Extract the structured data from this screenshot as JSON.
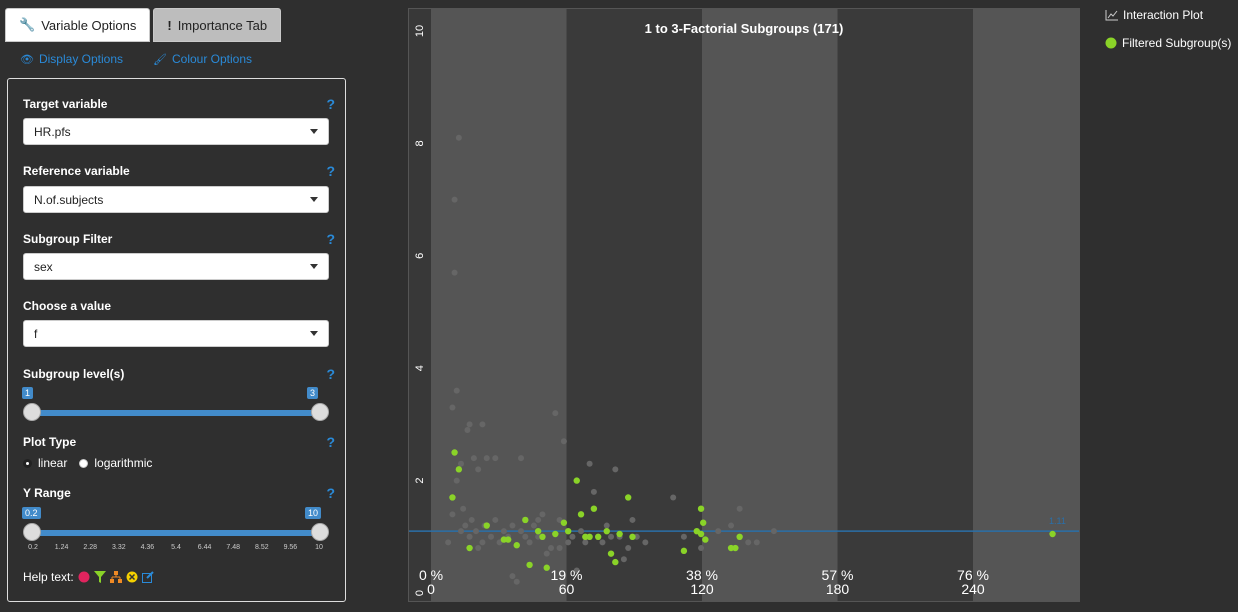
{
  "tabs": [
    {
      "label": "Variable Options",
      "icon": "wrench-icon",
      "active": true
    },
    {
      "label": "Importance Tab",
      "icon": "exclamation-icon",
      "active": false
    }
  ],
  "subtabs": [
    {
      "label": "Display Options",
      "icon": "eye-icon"
    },
    {
      "label": "Colour Options",
      "icon": "brush-icon"
    }
  ],
  "fields": {
    "target": {
      "label": "Target variable",
      "value": "HR.pfs"
    },
    "reference": {
      "label": "Reference variable",
      "value": "N.of.subjects"
    },
    "filter": {
      "label": "Subgroup Filter",
      "value": "sex"
    },
    "value": {
      "label": "Choose a value",
      "value": "f"
    },
    "levels": {
      "label": "Subgroup level(s)",
      "min": "1",
      "max": "3"
    },
    "plottype": {
      "label": "Plot Type",
      "options": [
        "linear",
        "logarithmic"
      ],
      "selected": "linear"
    },
    "yrange": {
      "label": "Y Range",
      "min": "0.2",
      "max": "10",
      "ticks": [
        "0.2",
        "1.24",
        "2.28",
        "3.32",
        "4.36",
        "5.4",
        "6.44",
        "7.48",
        "8.52",
        "9.56",
        "10"
      ]
    }
  },
  "help_text_label": "Help text:",
  "legend": {
    "interaction": "Interaction Plot",
    "filtered": "Filtered Subgroup(s)"
  },
  "colors": {
    "accent": "#428bca",
    "link": "#2a8ad8",
    "green": "#8ad328",
    "grey_point": "#666666",
    "refline": "#2a6fa8"
  },
  "chart_data": {
    "type": "scatter",
    "title": "1 to 3-Factorial Subgroups (171)",
    "ylim": [
      0,
      10
    ],
    "yticks": [
      "0",
      "2",
      "4",
      "6",
      "8",
      "10"
    ],
    "xlim": [
      0,
      300
    ],
    "x_labels_pct": [
      "0 %",
      "19 %",
      "38 %",
      "57 %",
      "76 %"
    ],
    "x_labels_n": [
      "0",
      "60",
      "120",
      "180",
      "240"
    ],
    "reference_line": {
      "y": 1.1,
      "label": "1.11"
    },
    "grey_points": [
      [
        12,
        3.6
      ],
      [
        10,
        3.3
      ],
      [
        13,
        8.1
      ],
      [
        11,
        7.0
      ],
      [
        11,
        5.7
      ],
      [
        14,
        2.3
      ],
      [
        12,
        2.0
      ],
      [
        15,
        1.5
      ],
      [
        10,
        1.4
      ],
      [
        18,
        3.0
      ],
      [
        17,
        2.9
      ],
      [
        20,
        2.4
      ],
      [
        22,
        2.2
      ],
      [
        24,
        3.0
      ],
      [
        26,
        2.4
      ],
      [
        30,
        2.4
      ],
      [
        8,
        0.9
      ],
      [
        14,
        1.1
      ],
      [
        16,
        1.2
      ],
      [
        18,
        1.0
      ],
      [
        19,
        1.3
      ],
      [
        21,
        1.1
      ],
      [
        22,
        0.8
      ],
      [
        24,
        0.9
      ],
      [
        25,
        1.2
      ],
      [
        28,
        1.0
      ],
      [
        30,
        1.3
      ],
      [
        32,
        0.9
      ],
      [
        34,
        1.1
      ],
      [
        36,
        1.0
      ],
      [
        38,
        0.3
      ],
      [
        40,
        0.2
      ],
      [
        38,
        1.2
      ],
      [
        42,
        1.1
      ],
      [
        44,
        1.0
      ],
      [
        46,
        0.9
      ],
      [
        48,
        1.2
      ],
      [
        50,
        1.3
      ],
      [
        52,
        1.4
      ],
      [
        54,
        0.7
      ],
      [
        56,
        0.8
      ],
      [
        58,
        3.2
      ],
      [
        60,
        1.3
      ],
      [
        62,
        2.7
      ],
      [
        64,
        0.9
      ],
      [
        66,
        1.0
      ],
      [
        68,
        0.4
      ],
      [
        70,
        1.1
      ],
      [
        72,
        0.9
      ],
      [
        74,
        2.3
      ],
      [
        76,
        1.8
      ],
      [
        78,
        1.0
      ],
      [
        80,
        0.9
      ],
      [
        82,
        1.2
      ],
      [
        84,
        1.0
      ],
      [
        86,
        2.2
      ],
      [
        88,
        1.0
      ],
      [
        90,
        0.6
      ],
      [
        92,
        0.8
      ],
      [
        94,
        1.3
      ],
      [
        96,
        1.0
      ],
      [
        100,
        0.9
      ],
      [
        113,
        1.7
      ],
      [
        118,
        1.0
      ],
      [
        126,
        0.8
      ],
      [
        134,
        1.1
      ],
      [
        140,
        1.2
      ],
      [
        144,
        1.5
      ],
      [
        148,
        0.9
      ],
      [
        152,
        0.9
      ],
      [
        160,
        1.1
      ],
      [
        42,
        2.4
      ],
      [
        50,
        1.0
      ],
      [
        60,
        0.8
      ]
    ],
    "green_points": [
      [
        11,
        2.5
      ],
      [
        13,
        2.2
      ],
      [
        10,
        1.7
      ],
      [
        18,
        0.8
      ],
      [
        26,
        1.2
      ],
      [
        34,
        0.95
      ],
      [
        36,
        0.95
      ],
      [
        40,
        0.85
      ],
      [
        44,
        1.3
      ],
      [
        46,
        0.5
      ],
      [
        50,
        1.1
      ],
      [
        52,
        1.0
      ],
      [
        54,
        0.45
      ],
      [
        58,
        1.05
      ],
      [
        62,
        1.25
      ],
      [
        64,
        1.1
      ],
      [
        68,
        2.0
      ],
      [
        70,
        1.4
      ],
      [
        72,
        1.0
      ],
      [
        74,
        1.0
      ],
      [
        76,
        1.5
      ],
      [
        78,
        1.0
      ],
      [
        82,
        1.1
      ],
      [
        84,
        0.7
      ],
      [
        86,
        0.55
      ],
      [
        88,
        1.05
      ],
      [
        92,
        1.7
      ],
      [
        94,
        1.0
      ],
      [
        118,
        0.75
      ],
      [
        124,
        1.1
      ],
      [
        126,
        1.5
      ],
      [
        127,
        1.25
      ],
      [
        128,
        0.95
      ],
      [
        140,
        0.8
      ],
      [
        142,
        0.8
      ],
      [
        144,
        1.0
      ],
      [
        290,
        1.05
      ],
      [
        126,
        1.05
      ]
    ]
  }
}
